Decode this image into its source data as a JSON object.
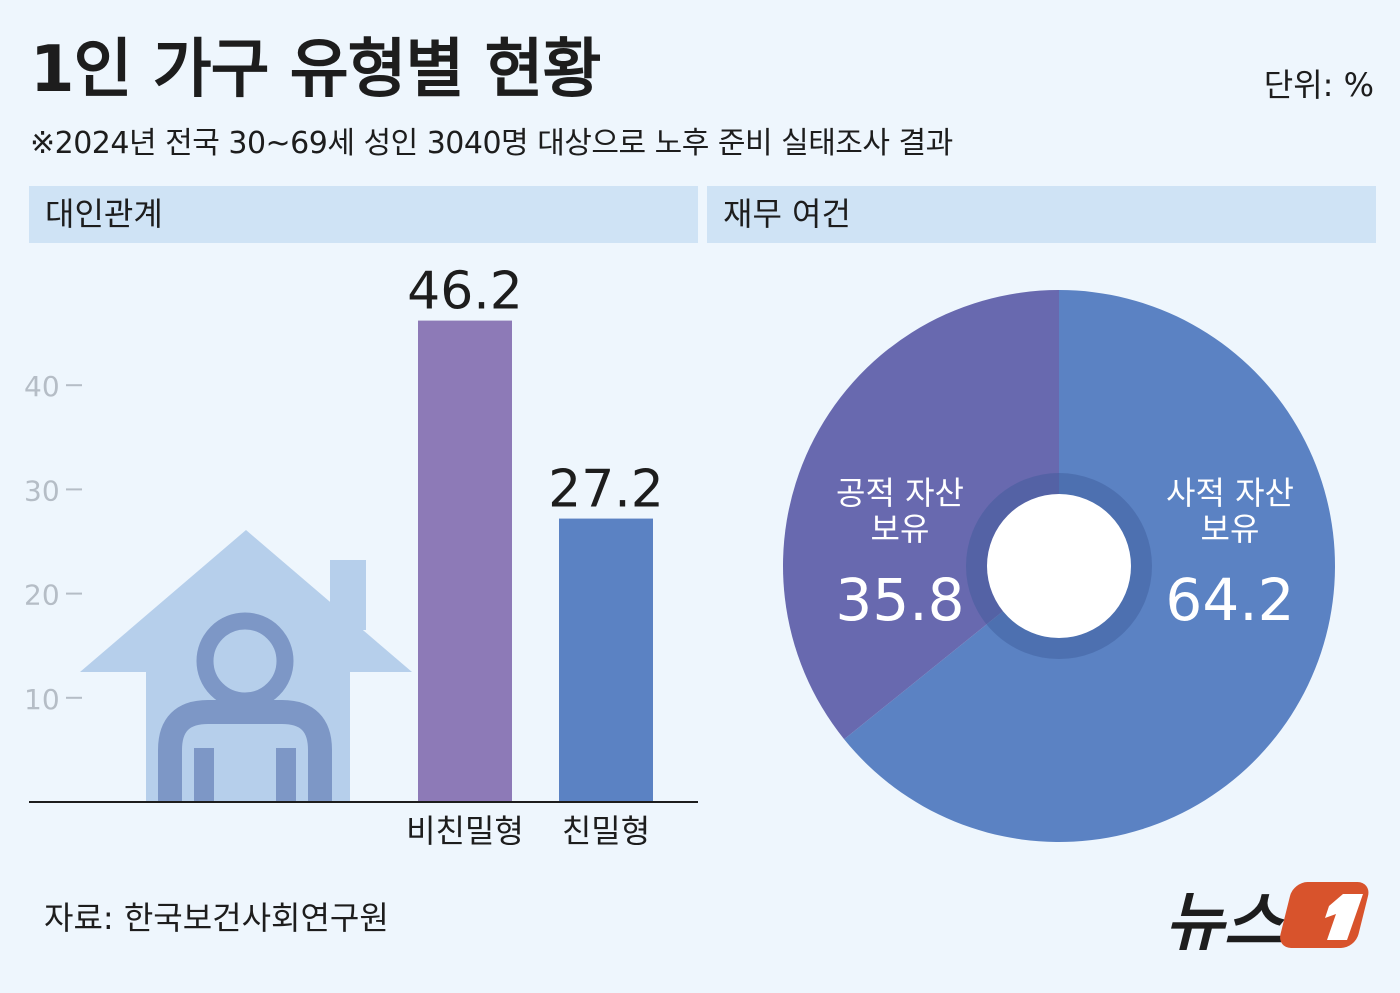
{
  "title": "1인 가구 유형별 현황",
  "unit": "단위: %",
  "subtitle": "※2024년 전국 30~69세 성인 3040명 대상으로 노후 준비 실태조사 결과",
  "source": "자료: 한국보건사회연구원",
  "logo_text": "뉴스1",
  "colors": {
    "background": "#eef6fd",
    "panel_header": "#cfe3f5",
    "bar_non_intimate": "#8d7ab7",
    "bar_intimate": "#5b82c3",
    "pie_private": "#5b82c3",
    "pie_public": "#6869af",
    "house": "#b6cfeb",
    "person": "#7d97c6",
    "logo_red": "#d8532c"
  },
  "icons": [
    "house-person-icon",
    "news1-logo"
  ],
  "chart_data": [
    {
      "type": "bar",
      "title": "대인관계",
      "categories": [
        "비친밀형",
        "친밀형"
      ],
      "values": [
        46.2,
        27.2
      ],
      "ylim": [
        0,
        50
      ],
      "yticks": [
        10,
        20,
        30,
        40
      ],
      "grid": false
    },
    {
      "type": "pie",
      "title": "재무 여건",
      "labels": [
        "사적 자산 보유",
        "공적 자산 보유"
      ],
      "label_lines": [
        [
          "사적 자산",
          "보유"
        ],
        [
          "공적 자산",
          "보유"
        ]
      ],
      "values": [
        64.2,
        35.8
      ],
      "donut": true
    }
  ]
}
